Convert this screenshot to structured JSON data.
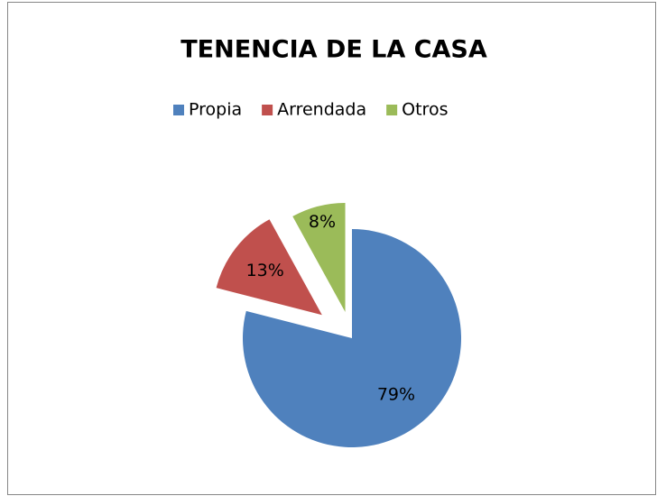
{
  "chart_data": {
    "type": "pie",
    "title": "TENENCIA DE LA CASA",
    "categories": [
      "Propia",
      "Arrendada",
      "Otros"
    ],
    "values": [
      79,
      13,
      8
    ],
    "value_labels": [
      "79%",
      "13%",
      "8%"
    ],
    "colors": [
      "#4f81bd",
      "#c0504d",
      "#9bbb59"
    ],
    "legend": "top"
  }
}
